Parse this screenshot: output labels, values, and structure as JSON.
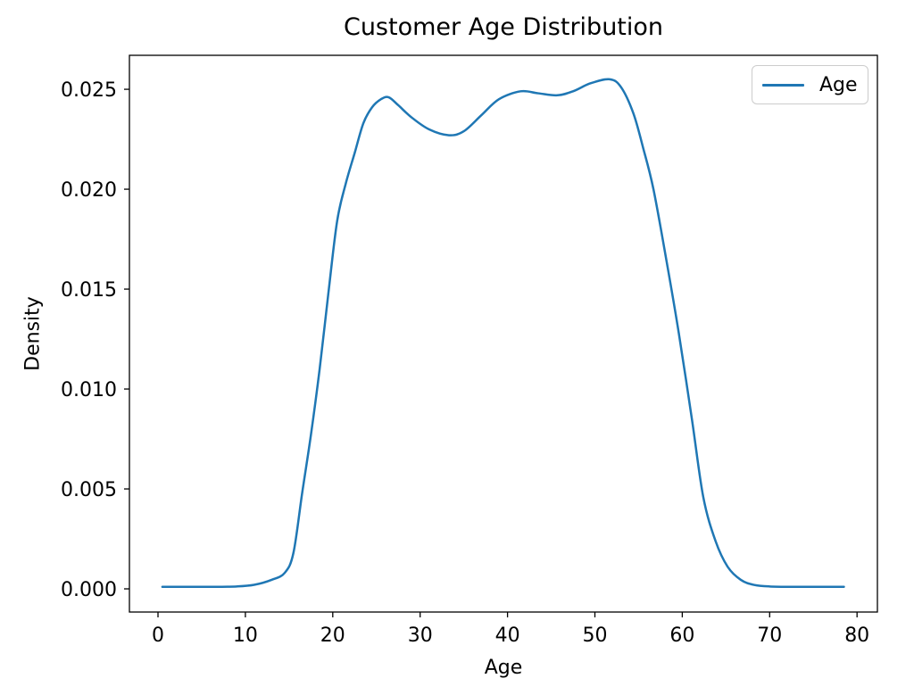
{
  "figure": {
    "background": "#ffffff"
  },
  "chart_data": {
    "type": "line",
    "subtype": "kde-density",
    "title": "Customer Age Distribution",
    "xlabel": "Age",
    "ylabel": "Density",
    "grid": false,
    "xlim": [
      -3.27,
      82.33
    ],
    "ylim": [
      -0.00116,
      0.0267
    ],
    "xticks": [
      0,
      10,
      20,
      30,
      40,
      50,
      60,
      70,
      80
    ],
    "xtick_labels": [
      "0",
      "10",
      "20",
      "30",
      "40",
      "50",
      "60",
      "70",
      "80"
    ],
    "yticks": [
      0.0,
      0.005,
      0.01,
      0.015,
      0.02,
      0.025
    ],
    "ytick_labels": [
      "0.000",
      "0.005",
      "0.010",
      "0.015",
      "0.020",
      "0.025"
    ],
    "legend": {
      "position": "upper right",
      "entries": [
        {
          "label": "Age",
          "color": "#1f77b4"
        }
      ]
    },
    "series": [
      {
        "name": "Age",
        "color": "#1f77b4",
        "line_width": 2.5,
        "x": [
          0.5,
          3,
          6,
          9,
          11,
          13,
          14.5,
          15.5,
          16.5,
          17.5,
          18.5,
          19.5,
          20.5,
          21.5,
          22.5,
          23.5,
          24.5,
          25.5,
          26.4,
          27.5,
          29,
          31,
          33.3,
          35,
          37,
          39,
          41.5,
          43.5,
          45.7,
          47.5,
          49.5,
          51.7,
          53,
          54.4,
          55.5,
          56.7,
          58.2,
          59.6,
          61.1,
          62.4,
          63.8,
          65.2,
          66.7,
          68.2,
          70,
          73,
          78.5
        ],
        "y": [
          0.0001,
          0.0001,
          0.0001,
          0.00012,
          0.0002,
          0.00045,
          0.0008,
          0.0018,
          0.0048,
          0.0077,
          0.011,
          0.0148,
          0.0184,
          0.0203,
          0.0218,
          0.0233,
          0.0241,
          0.0245,
          0.0246,
          0.0242,
          0.0236,
          0.023,
          0.0227,
          0.0229,
          0.0237,
          0.0245,
          0.0249,
          0.0248,
          0.0247,
          0.0249,
          0.0253,
          0.0255,
          0.0251,
          0.0238,
          0.0221,
          0.02,
          0.0164,
          0.0128,
          0.0085,
          0.0046,
          0.0024,
          0.0011,
          0.00045,
          0.0002,
          0.00012,
          0.0001,
          0.0001
        ]
      }
    ],
    "axis_color": "#000000",
    "tick_label_font_px": 22
  }
}
